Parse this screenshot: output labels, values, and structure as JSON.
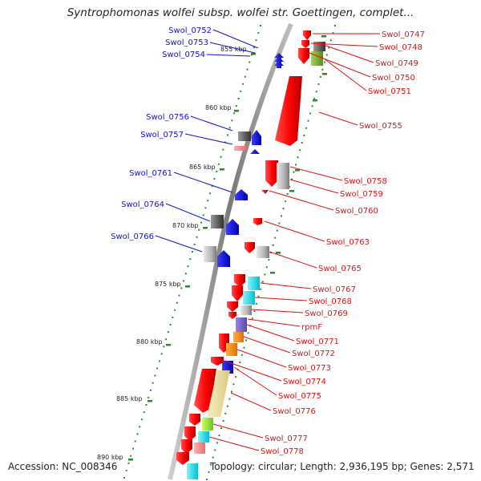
{
  "title": "Syntrophomonas wolfei subsp. wolfei str. Goettingen, complet...",
  "footer": {
    "accession": "Accession: NC_008346",
    "topology": "Topology: circular; Length: 2,936,195 bp; Genes: 2,571"
  },
  "scale_labels": [
    "855 kbp",
    "860 kbp",
    "865 kbp",
    "870 kbp",
    "875 kbp",
    "880 kbp",
    "885 kbp",
    "890 kbp"
  ],
  "left_genes": [
    "Swol_0752",
    "Swol_0753",
    "Swol_0754",
    "Swol_0756",
    "Swol_0757",
    "Swol_0761",
    "Swol_0764",
    "Swol_0766"
  ],
  "right_genes": [
    "Swol_0747",
    "Swol_0748",
    "Swol_0749",
    "Swol_0750",
    "Swol_0751",
    "Swol_0755",
    "Swol_0758",
    "Swol_0759",
    "Swol_0760",
    "Swol_0763",
    "Swol_0765",
    "Swol_0767",
    "Swol_0768",
    "Swol_0769",
    "rpmF",
    "Swol_0771",
    "Swol_0772",
    "Swol_0773",
    "Swol_0774",
    "Swol_0775",
    "Swol_0776",
    "Swol_0777",
    "Swol_0778"
  ],
  "colors": {
    "forward_label": "#1111cc",
    "reverse_label": "#dd1111",
    "backbone": "#808080",
    "tick": "#2a8a2a"
  }
}
